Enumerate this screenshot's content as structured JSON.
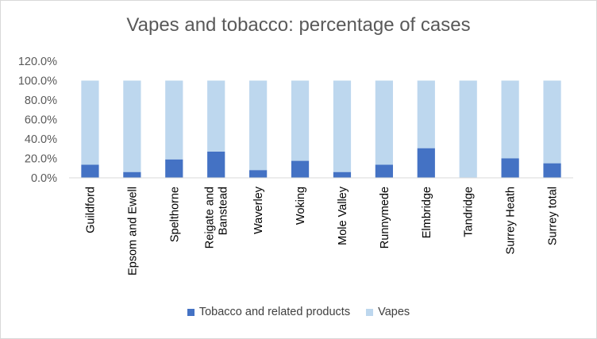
{
  "chart_data": {
    "type": "bar",
    "stacked": true,
    "title": "Vapes and tobacco: percentage of cases",
    "categories": [
      "Guildford",
      "Epsom and Ewell",
      "Spelthorne",
      "Reigate and Banstead",
      "Waverley",
      "Woking",
      "Mole Valley",
      "Runnymede",
      "Elmbridge",
      "Tandridge",
      "Surrey Heath",
      "Surrey total"
    ],
    "series": [
      {
        "name": "Tobacco and related products",
        "color": "#4472c4",
        "values": [
          13.5,
          6,
          19,
          27,
          8,
          17.5,
          6,
          13.5,
          30.5,
          0,
          20,
          15
        ]
      },
      {
        "name": "Vapes",
        "color": "#bdd7ee",
        "values": [
          86.5,
          94,
          81,
          73,
          92,
          82.5,
          94,
          86.5,
          69.5,
          100,
          80,
          85
        ]
      }
    ],
    "ylim": [
      0,
      120
    ],
    "yticks": [
      "0.0%",
      "20.0%",
      "40.0%",
      "60.0%",
      "80.0%",
      "100.0%",
      "120.0%"
    ],
    "grid": false,
    "legend": "bottom"
  }
}
